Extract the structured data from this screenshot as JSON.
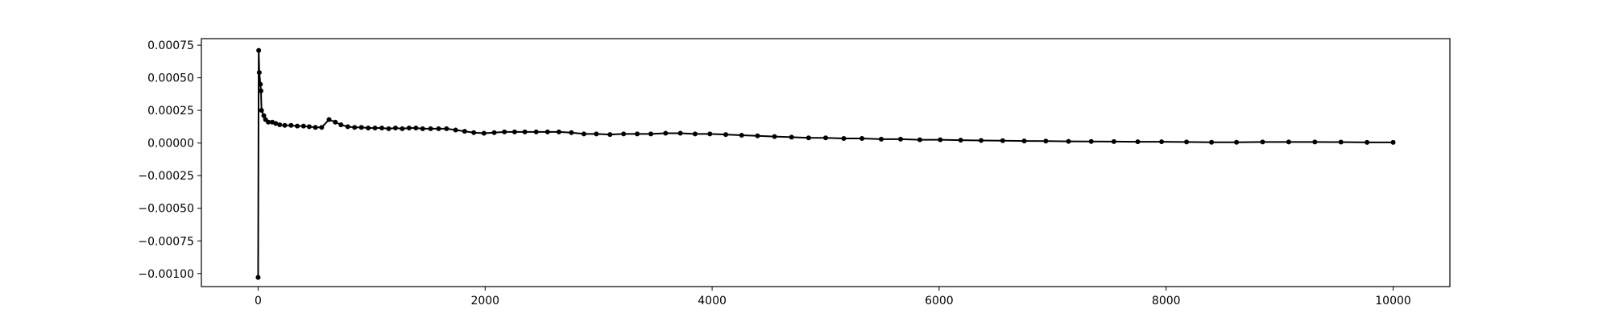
{
  "chart_data": {
    "type": "line",
    "color": "#000000",
    "x": [
      0,
      5,
      10,
      20,
      25,
      30,
      50,
      65,
      90,
      125,
      155,
      190,
      235,
      290,
      345,
      400,
      450,
      505,
      560,
      625,
      680,
      730,
      790,
      850,
      910,
      970,
      1030,
      1090,
      1150,
      1210,
      1270,
      1330,
      1390,
      1450,
      1520,
      1590,
      1660,
      1740,
      1820,
      1900,
      1990,
      2080,
      2170,
      2260,
      2350,
      2450,
      2550,
      2650,
      2760,
      2870,
      2980,
      3100,
      3220,
      3340,
      3460,
      3590,
      3720,
      3850,
      3980,
      4120,
      4260,
      4400,
      4550,
      4700,
      4850,
      5000,
      5160,
      5320,
      5490,
      5660,
      5830,
      6010,
      6190,
      6370,
      6560,
      6750,
      6940,
      7140,
      7340,
      7540,
      7750,
      7960,
      8180,
      8400,
      8620,
      8850,
      9080,
      9310,
      9540,
      9770,
      10000
    ],
    "values": [
      -0.00103,
      0.00071,
      0.00054,
      0.00045,
      0.0004,
      0.00025,
      0.00021,
      0.00018,
      0.00016,
      0.00016,
      0.00015,
      0.00014,
      0.000135,
      0.000135,
      0.00013,
      0.00013,
      0.000125,
      0.00012,
      0.00012,
      0.00018,
      0.00016,
      0.00014,
      0.000125,
      0.00012,
      0.00012,
      0.000115,
      0.000115,
      0.000115,
      0.00011,
      0.000115,
      0.00011,
      0.000115,
      0.000115,
      0.00011,
      0.00011,
      0.00011,
      0.00011,
      0.0001,
      9e-05,
      8e-05,
      7.5e-05,
      8e-05,
      8.5e-05,
      8.5e-05,
      8.5e-05,
      8.5e-05,
      8.5e-05,
      8.5e-05,
      8e-05,
      7e-05,
      7e-05,
      6.5e-05,
      7e-05,
      7e-05,
      7e-05,
      7.5e-05,
      7.5e-05,
      7e-05,
      7e-05,
      6.5e-05,
      6e-05,
      5.5e-05,
      5e-05,
      4.5e-05,
      4e-05,
      4e-05,
      3.5e-05,
      3.5e-05,
      3e-05,
      3e-05,
      2.5e-05,
      2.5e-05,
      2.2e-05,
      2e-05,
      1.8e-05,
      1.6e-05,
      1.5e-05,
      1.3e-05,
      1.2e-05,
      1.1e-05,
      1e-05,
      1e-05,
      8e-06,
      6e-06,
      6e-06,
      8e-06,
      8e-06,
      8e-06,
      7e-06,
      5e-06,
      5e-06
    ],
    "xlim": [
      -500,
      10500
    ],
    "xticks": [
      0,
      2000,
      4000,
      6000,
      8000,
      10000
    ],
    "ylim": [
      -0.0011,
      0.0008
    ],
    "yticks": [
      {
        "value": -0.001,
        "label": "−0.00100"
      },
      {
        "value": -0.00075,
        "label": "−0.00075"
      },
      {
        "value": -0.0005,
        "label": "−0.00050"
      },
      {
        "value": -0.00025,
        "label": "−0.00025"
      },
      {
        "value": 0,
        "label": "0.00000"
      },
      {
        "value": 0.00025,
        "label": "0.00025"
      },
      {
        "value": 0.0005,
        "label": "0.00050"
      },
      {
        "value": 0.00075,
        "label": "0.00075"
      }
    ]
  }
}
